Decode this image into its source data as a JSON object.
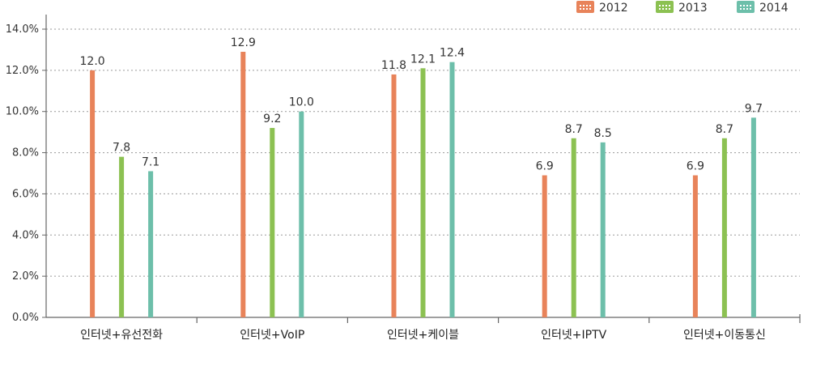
{
  "chart_data": {
    "type": "bar",
    "categories": [
      "인터넷+유선전화",
      "인터넷+VoIP",
      "인터넷+케이블",
      "인터넷+IPTV",
      "인터넷+이동통신"
    ],
    "series": [
      {
        "name": "2012",
        "color": "#e8835a",
        "values": [
          12.0,
          12.9,
          11.8,
          6.9,
          6.9
        ],
        "labels": [
          "12.0",
          "12.9",
          "11.8",
          "6.9",
          "6.9"
        ]
      },
      {
        "name": "2013",
        "color": "#8cc152",
        "values": [
          7.8,
          9.2,
          12.1,
          8.7,
          8.7
        ],
        "labels": [
          "7.8",
          "9.2",
          "12.1",
          "8.7",
          "8.7"
        ]
      },
      {
        "name": "2014",
        "color": "#6dbfaa",
        "values": [
          7.1,
          10.0,
          12.4,
          8.5,
          9.7
        ],
        "labels": [
          "7.1",
          "10.0",
          "12.4",
          "8.5",
          "9.7"
        ]
      }
    ],
    "yticks": [
      "0.0%",
      "2.0%",
      "4.0%",
      "6.0%",
      "8.0%",
      "10.0%",
      "12.0%",
      "14.0%"
    ],
    "ylim": [
      0,
      14
    ],
    "grid": true,
    "legend_position": "top-right"
  }
}
